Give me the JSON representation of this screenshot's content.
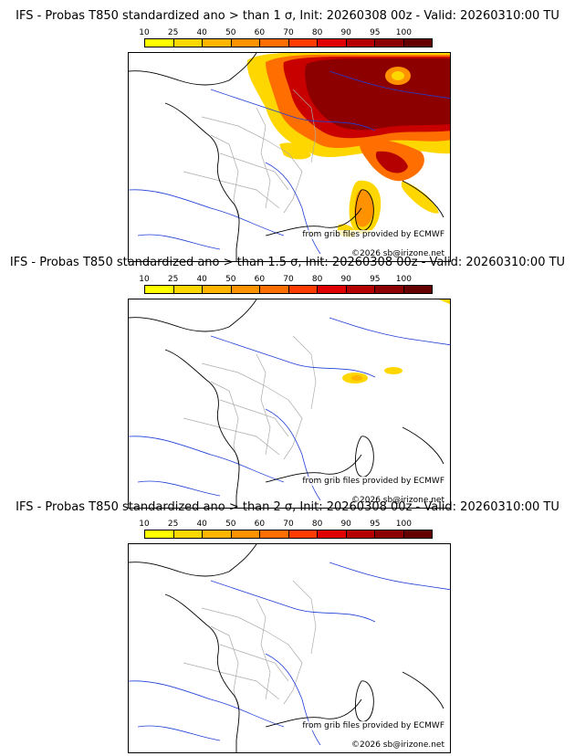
{
  "colorbar": {
    "ticks": [
      "10",
      "25",
      "40",
      "50",
      "60",
      "70",
      "80",
      "90",
      "95",
      "100"
    ],
    "colors": [
      "#ffff00",
      "#ffd700",
      "#ffb400",
      "#ff9200",
      "#ff6e00",
      "#ff3c00",
      "#e00000",
      "#b40000",
      "#8c0000",
      "#640000"
    ]
  },
  "panels": [
    {
      "title": "IFS - Probas T850  standardized ano > than 1 σ, Init: 20260308 00z - Valid: 20260310:00 TU",
      "credit_source": "from grib files provided by ECMWF",
      "credit_copy": "©2026 sb@irizone.net"
    },
    {
      "title": "IFS - Probas T850  standardized ano > than 1.5 σ, Init: 20260308 00z - Valid: 20260310:00 TU",
      "credit_source": "from grib files provided by ECMWF",
      "credit_copy": "©2026 sb@irizone.net"
    },
    {
      "title": "IFS - Probas T850  standardized ano > than 2 σ, Init: 20260308 00z - Valid: 20260310:00 TU",
      "credit_source": "from grib files provided by ECMWF",
      "credit_copy": "©2026 sb@irizone.net"
    }
  ],
  "colors": {
    "coastline": "#000000",
    "borders": "#aaaaaa",
    "rivers": "#1f3fd6"
  }
}
